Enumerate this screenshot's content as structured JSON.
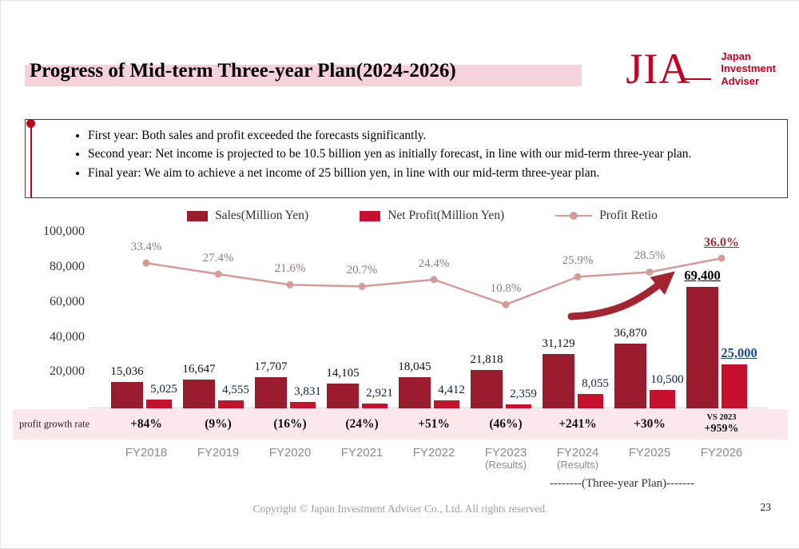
{
  "slide": {
    "title": "Progress of Mid-term Three-year Plan(2024-2026)",
    "page_number": "23",
    "copyright": "Copyright © Japan Investment Adviser Co., Ltd. All rights reserved."
  },
  "logo": {
    "mark": "JIA",
    "lines": [
      "Japan",
      "Investment",
      "Adviser"
    ],
    "color": "#C00020"
  },
  "bullets": [
    "First year: Both sales and profit exceeded the forecasts significantly.",
    "Second year: Net income is projected to be 10.5 billion yen as initially forecast, in line with our mid-term three-year plan.",
    "Final year: We aim to achieve a net income of 25 billion yen, in line with our mid-term three-year plan."
  ],
  "chart_data": {
    "type": "bar",
    "title": "",
    "categories": [
      "FY2018",
      "FY2019",
      "FY2020",
      "FY2021",
      "FY2022",
      "FY2023",
      "FY2024",
      "FY2025",
      "FY2026"
    ],
    "category_sublabels": [
      "",
      "",
      "",
      "",
      "",
      "(Results)",
      "(Results)",
      "",
      ""
    ],
    "y_ticks": [
      "100,000",
      "80,000",
      "60,000",
      "40,000",
      "20,000"
    ],
    "ylim": [
      0,
      105000
    ],
    "series": [
      {
        "name": "Sales(Million Yen)",
        "type": "bar",
        "color": "#9A1B2B",
        "values": [
          15036,
          16647,
          17707,
          14105,
          18045,
          21818,
          31129,
          36870,
          69400
        ],
        "labels": [
          "15,036",
          "16,647",
          "17,707",
          "14,105",
          "18,045",
          "21,818",
          "31,129",
          "36,870",
          "69,400"
        ]
      },
      {
        "name": "Net Profit(Million Yen)",
        "type": "bar",
        "color": "#C8102E",
        "values": [
          5025,
          4555,
          3831,
          2921,
          4412,
          2359,
          8055,
          10500,
          25000
        ],
        "labels": [
          "5,025",
          "4,555",
          "3,831",
          "2,921",
          "4,412",
          "2,359",
          "8,055",
          "10,500",
          "25,000"
        ]
      },
      {
        "name": "Profit Retio",
        "type": "line",
        "color": "#D49B9B",
        "values_pct": [
          33.4,
          27.4,
          21.6,
          20.7,
          24.4,
          10.8,
          25.9,
          28.5,
          36.0
        ],
        "labels": [
          "33.4%",
          "27.4%",
          "21.6%",
          "20.7%",
          "24.4%",
          "10.8%",
          "25.9%",
          "28.5%",
          "36.0%"
        ]
      }
    ],
    "growth_row": {
      "label": "profit growth rate",
      "values": [
        "+84%",
        "(9%)",
        "(16%)",
        "(24%)",
        "+51%",
        "(46%)",
        "+241%",
        "+30%"
      ],
      "last": {
        "top": "VS 2023",
        "bottom": "+959%"
      }
    },
    "three_year_plan_label": "--------(Three-year Plan)-------",
    "arrow_color": "#A32531",
    "legend_position": "top"
  }
}
